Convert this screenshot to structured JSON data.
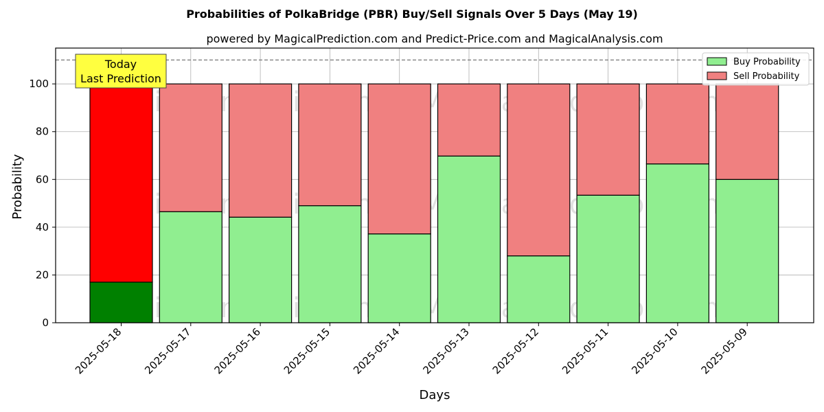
{
  "chart_data": {
    "type": "bar",
    "stacked": true,
    "title": "Probabilities of PolkaBridge (PBR) Buy/Sell Signals Over 5 Days (May 19)",
    "subtitle": "powered by MagicalPrediction.com and Predict-Price.com and MagicalAnalysis.com",
    "xlabel": "Days",
    "ylabel": "Probability",
    "ylim": [
      0,
      115
    ],
    "yticks": [
      0,
      20,
      40,
      60,
      80,
      100
    ],
    "grid": true,
    "legend_position": "top-right",
    "reference_line": 110,
    "categories": [
      "2025-05-18",
      "2025-05-17",
      "2025-05-16",
      "2025-05-15",
      "2025-05-14",
      "2025-05-13",
      "2025-05-12",
      "2025-05-11",
      "2025-05-10",
      "2025-05-09"
    ],
    "series": [
      {
        "name": "Buy Probability",
        "color": "#90ee90",
        "highlight_color": "#008000",
        "values": [
          17,
          46.5,
          44.2,
          49,
          37.2,
          69.8,
          28,
          53.4,
          66.5,
          60
        ]
      },
      {
        "name": "Sell Probability",
        "color": "#f08080",
        "highlight_color": "#ff0000",
        "values": [
          83,
          53.5,
          55.8,
          51,
          62.8,
          30.2,
          72,
          46.6,
          33.5,
          40
        ]
      }
    ],
    "annotation": {
      "lines": [
        "Today",
        "Last Prediction"
      ],
      "category_index": 0,
      "color": "#ffff40"
    },
    "watermarks": [
      "MagicalAnalysis.com",
      "MagicalPrediction.com"
    ]
  }
}
